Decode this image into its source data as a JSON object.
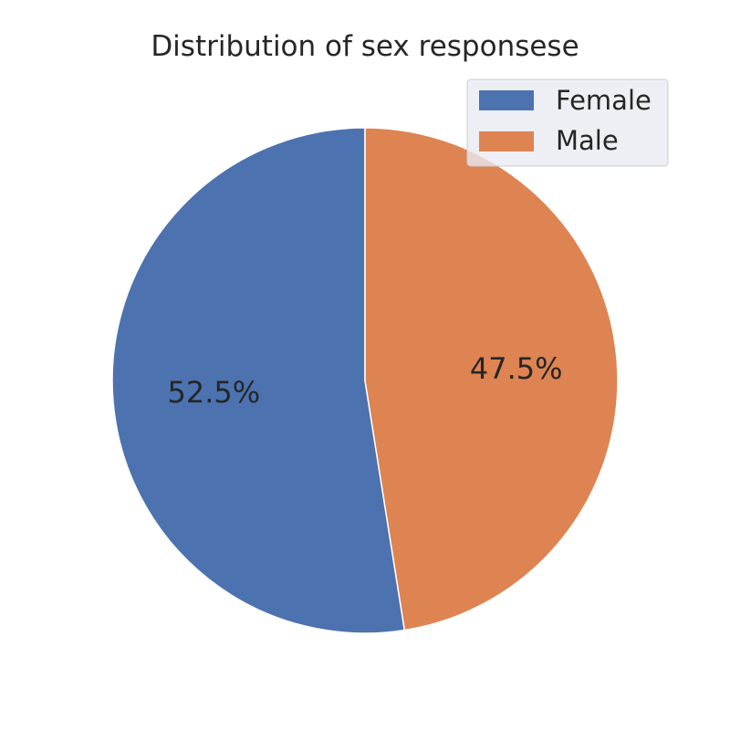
{
  "chart_data": {
    "type": "pie",
    "title": "Distribution of sex responsese",
    "categories": [
      "Female",
      "Male"
    ],
    "values": [
      52.5,
      47.5
    ],
    "labels": [
      "52.5%",
      "47.5%"
    ],
    "colors": [
      "#4c72b0",
      "#dd8452"
    ],
    "start_angle_deg": 90,
    "direction": "counterclockwise",
    "legend": {
      "placement": "top-right",
      "entries": [
        "Female",
        "Male"
      ]
    }
  }
}
